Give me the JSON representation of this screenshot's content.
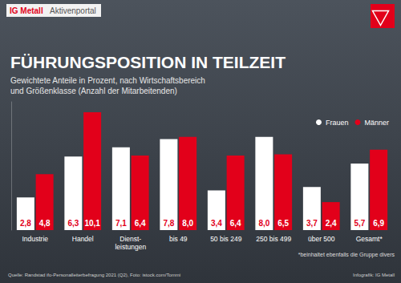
{
  "header": {
    "brand": "IG Metall",
    "portal": "Aktivenportal"
  },
  "chart_data": {
    "type": "bar",
    "title": "FÜHRUNGSPOSITION IN TEILZEIT",
    "subtitle": "Gewichtete Anteile in Prozent, nach Wirtschaftsbereich\nund Größenklasse (Anzahl der Mitarbeitenden)",
    "categories": [
      "Industrie",
      "Handel",
      "Dienst-\nleistungen",
      "bis 49",
      "50 bis 249",
      "250 bis 499",
      "über 500",
      "Gesamt*"
    ],
    "series": [
      {
        "name": "Frauen",
        "color": "#ffffff",
        "values": [
          2.8,
          6.3,
          7.1,
          7.8,
          3.4,
          8.0,
          3.7,
          5.7
        ],
        "value_labels": [
          "2,8",
          "6,3",
          "7,1",
          "7,8",
          "3,4",
          "8,0",
          "3,7",
          "5,7"
        ]
      },
      {
        "name": "Männer",
        "color": "#e2001a",
        "values": [
          4.8,
          10.1,
          6.4,
          8.0,
          6.4,
          6.5,
          2.4,
          6.9
        ],
        "value_labels": [
          "4,8",
          "10,1",
          "6,4",
          "8,0",
          "6,4",
          "6,5",
          "2,4",
          "6,9"
        ]
      }
    ],
    "ylim": [
      0,
      11
    ],
    "tick_labels": "x",
    "grid": false,
    "legend": "top-right",
    "data_labels": true,
    "annotations": [
      "*beinhaltet ebenfalls die Gruppe divers",
      "Quelle: Randstad ifo-Personalleiterbefragung 2021 (Q2), Foto: istock.com/Tommi",
      "Infografik: IG Metall"
    ]
  }
}
